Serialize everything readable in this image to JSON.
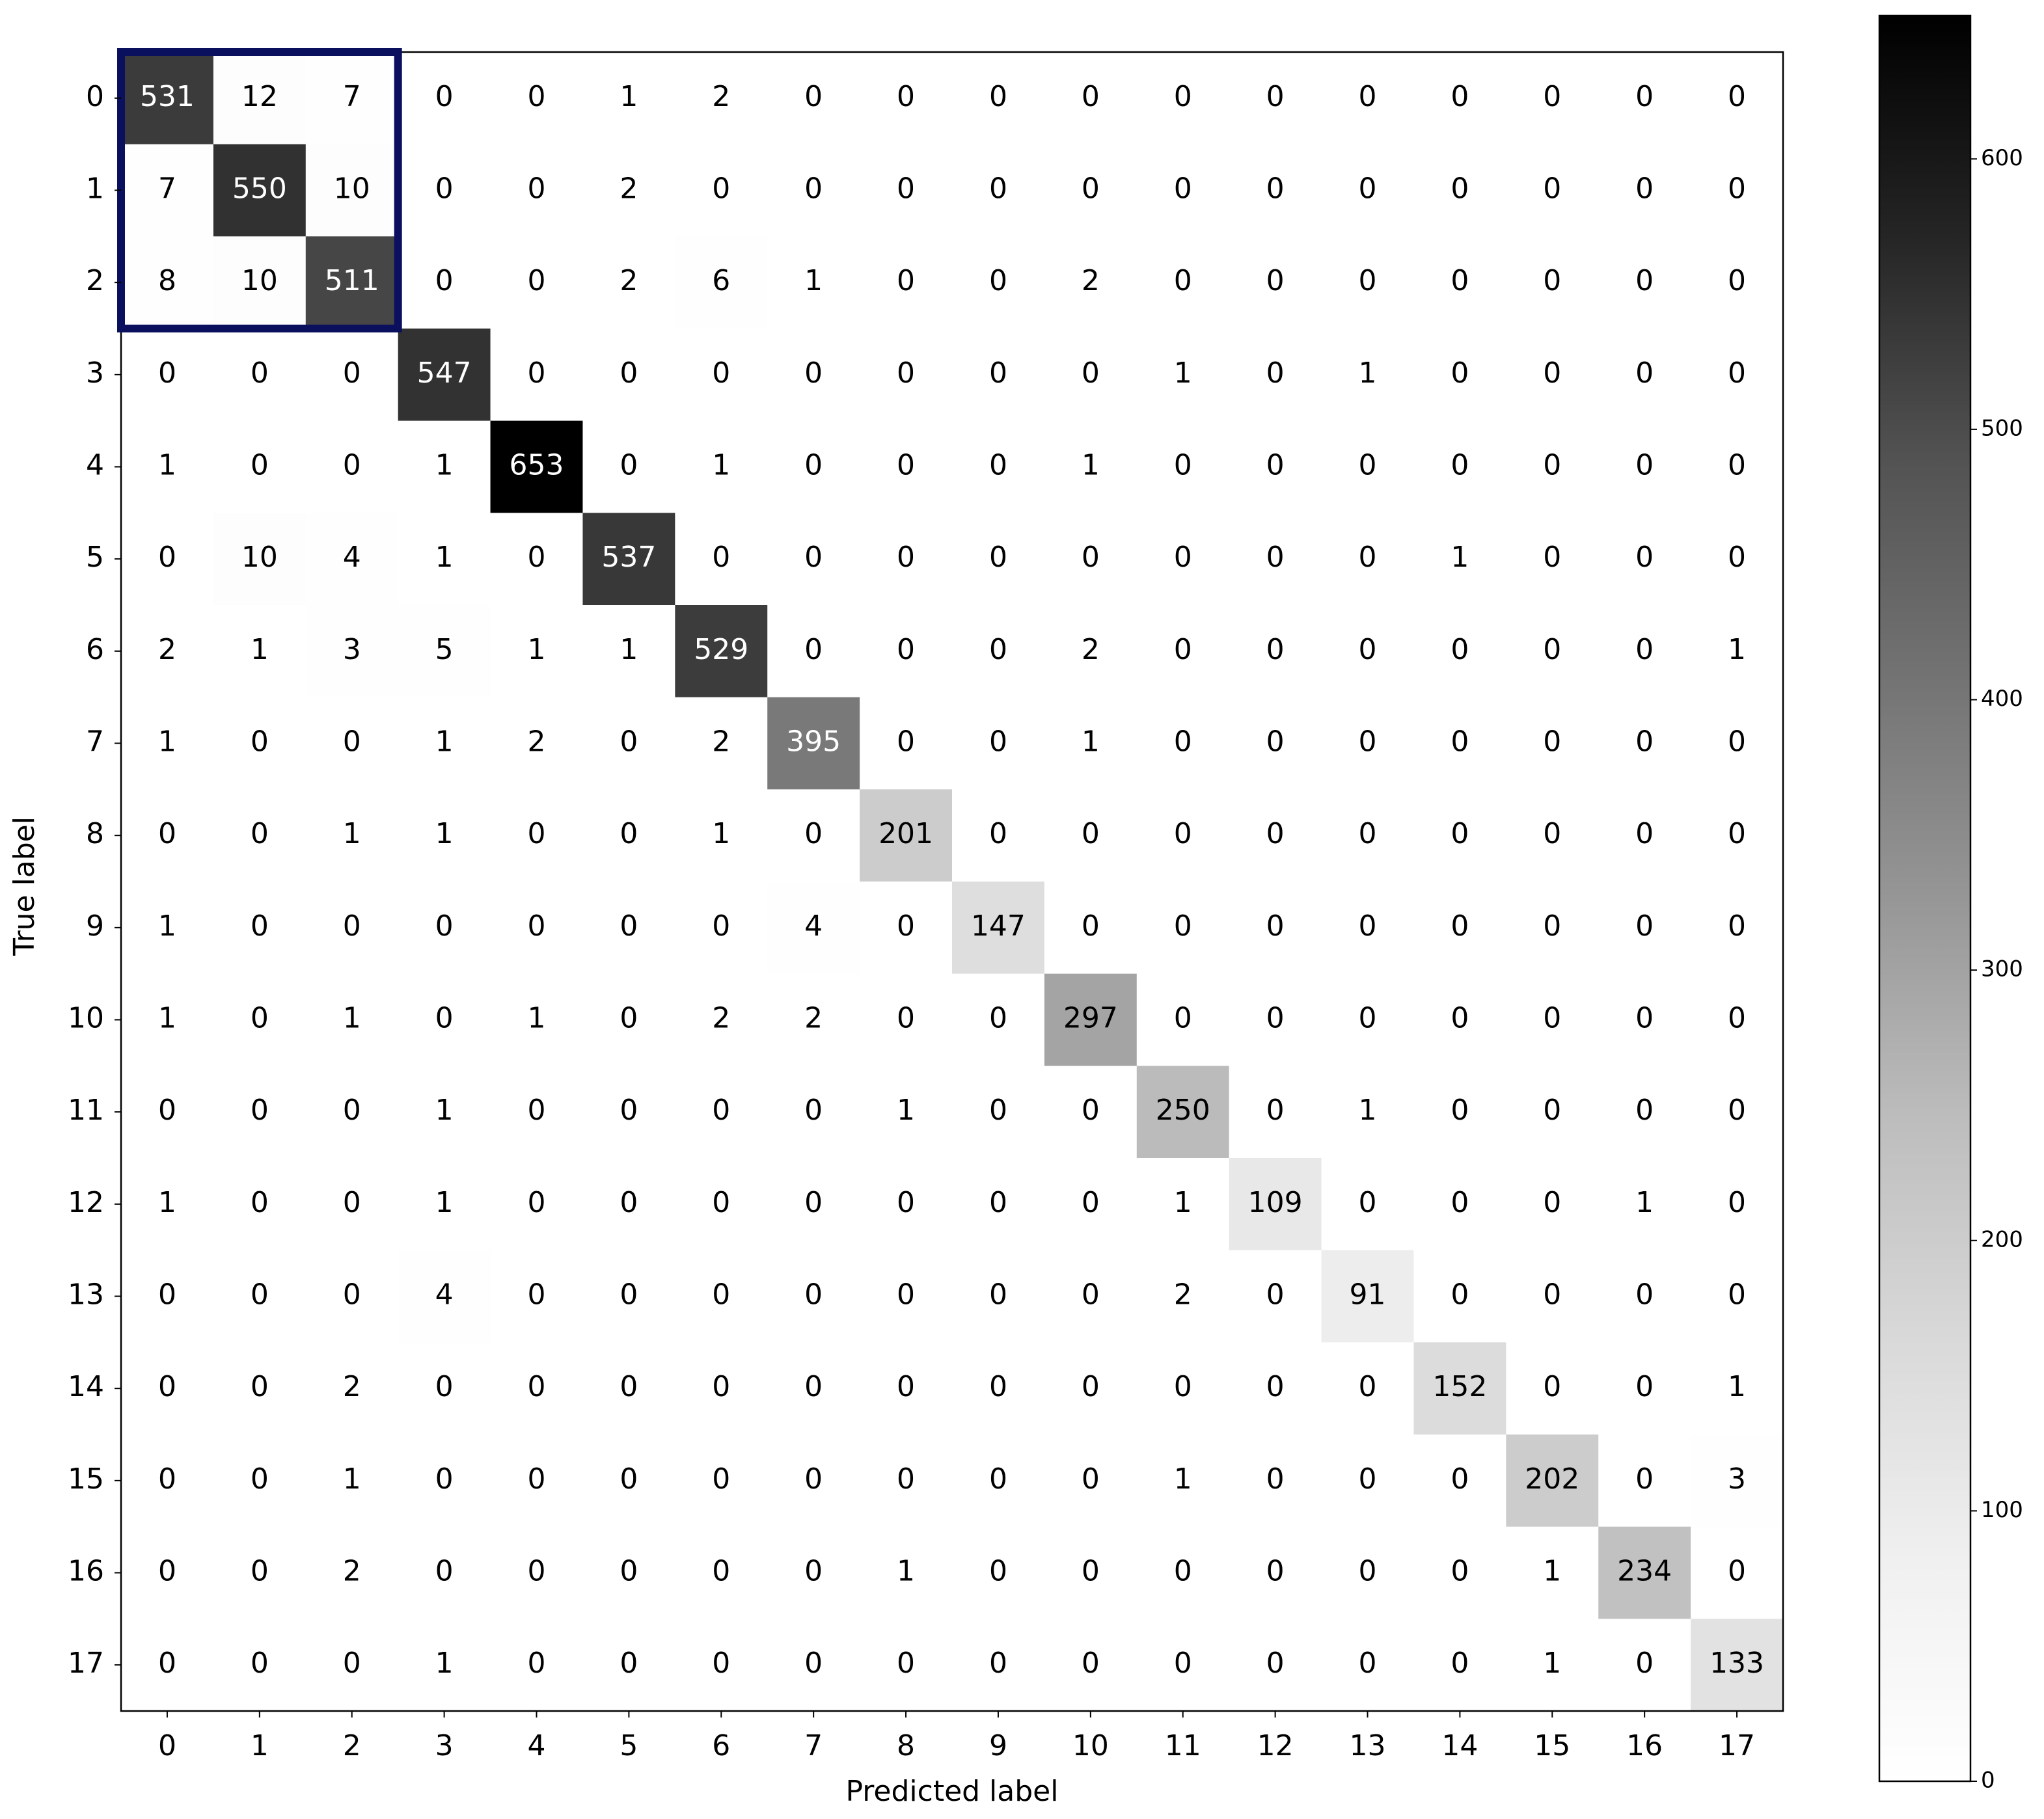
{
  "chart_data": {
    "type": "heatmap",
    "xlabel": "Predicted label",
    "ylabel": "True label",
    "x": [
      0,
      1,
      2,
      3,
      4,
      5,
      6,
      7,
      8,
      9,
      10,
      11,
      12,
      13,
      14,
      15,
      16,
      17
    ],
    "y": [
      0,
      1,
      2,
      3,
      4,
      5,
      6,
      7,
      8,
      9,
      10,
      11,
      12,
      13,
      14,
      15,
      16,
      17
    ],
    "z": [
      [
        531,
        12,
        7,
        0,
        0,
        1,
        2,
        0,
        0,
        0,
        0,
        0,
        0,
        0,
        0,
        0,
        0,
        0
      ],
      [
        7,
        550,
        10,
        0,
        0,
        2,
        0,
        0,
        0,
        0,
        0,
        0,
        0,
        0,
        0,
        0,
        0,
        0
      ],
      [
        8,
        10,
        511,
        0,
        0,
        2,
        6,
        1,
        0,
        0,
        2,
        0,
        0,
        0,
        0,
        0,
        0,
        0
      ],
      [
        0,
        0,
        0,
        547,
        0,
        0,
        0,
        0,
        0,
        0,
        0,
        1,
        0,
        1,
        0,
        0,
        0,
        0
      ],
      [
        1,
        0,
        0,
        1,
        653,
        0,
        1,
        0,
        0,
        0,
        1,
        0,
        0,
        0,
        0,
        0,
        0,
        0
      ],
      [
        0,
        10,
        4,
        1,
        0,
        537,
        0,
        0,
        0,
        0,
        0,
        0,
        0,
        0,
        1,
        0,
        0,
        0
      ],
      [
        2,
        1,
        3,
        5,
        1,
        1,
        529,
        0,
        0,
        0,
        2,
        0,
        0,
        0,
        0,
        0,
        0,
        1
      ],
      [
        1,
        0,
        0,
        1,
        2,
        0,
        2,
        395,
        0,
        0,
        1,
        0,
        0,
        0,
        0,
        0,
        0,
        0
      ],
      [
        0,
        0,
        1,
        1,
        0,
        0,
        1,
        0,
        201,
        0,
        0,
        0,
        0,
        0,
        0,
        0,
        0,
        0
      ],
      [
        1,
        0,
        0,
        0,
        0,
        0,
        0,
        4,
        0,
        147,
        0,
        0,
        0,
        0,
        0,
        0,
        0,
        0
      ],
      [
        1,
        0,
        1,
        0,
        1,
        0,
        2,
        2,
        0,
        0,
        297,
        0,
        0,
        0,
        0,
        0,
        0,
        0
      ],
      [
        0,
        0,
        0,
        1,
        0,
        0,
        0,
        0,
        1,
        0,
        0,
        250,
        0,
        1,
        0,
        0,
        0,
        0
      ],
      [
        1,
        0,
        0,
        1,
        0,
        0,
        0,
        0,
        0,
        0,
        0,
        1,
        109,
        0,
        0,
        0,
        1,
        0
      ],
      [
        0,
        0,
        0,
        4,
        0,
        0,
        0,
        0,
        0,
        0,
        0,
        2,
        0,
        91,
        0,
        0,
        0,
        0
      ],
      [
        0,
        0,
        2,
        0,
        0,
        0,
        0,
        0,
        0,
        0,
        0,
        0,
        0,
        0,
        152,
        0,
        0,
        1
      ],
      [
        0,
        0,
        1,
        0,
        0,
        0,
        0,
        0,
        0,
        0,
        0,
        1,
        0,
        0,
        0,
        202,
        0,
        3
      ],
      [
        0,
        0,
        2,
        0,
        0,
        0,
        0,
        0,
        1,
        0,
        0,
        0,
        0,
        0,
        0,
        1,
        234,
        0
      ],
      [
        0,
        0,
        0,
        1,
        0,
        0,
        0,
        0,
        0,
        0,
        0,
        0,
        0,
        0,
        0,
        1,
        0,
        133
      ]
    ],
    "clim": [
      0,
      653
    ],
    "cticks": [
      0,
      100,
      200,
      300,
      400,
      500,
      600
    ],
    "colormap": [
      "#ffffff",
      "#f0f0f0",
      "#d9d9d9",
      "#bdbdbd",
      "#969696",
      "#737373",
      "#525252",
      "#252525",
      "#000000"
    ],
    "highlight_color": "#0a0f5e"
  }
}
